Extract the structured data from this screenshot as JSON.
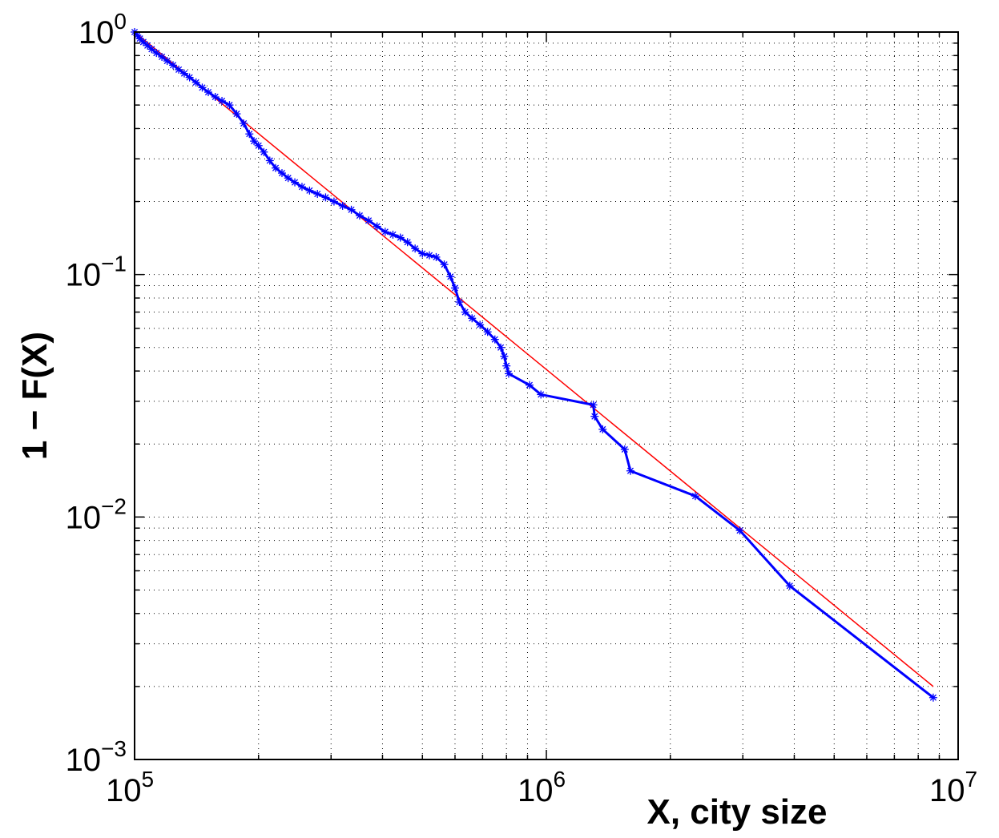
{
  "chart_data": {
    "type": "line",
    "title": "",
    "xlabel": "X, city size",
    "ylabel": "1 − F(X)",
    "xscale": "log",
    "yscale": "log",
    "xlim": [
      100000,
      10000000
    ],
    "ylim": [
      0.001,
      1
    ],
    "grid": true,
    "x_ticks": [
      {
        "value": 100000,
        "base": "10",
        "exp": "5"
      },
      {
        "value": 1000000,
        "base": "10",
        "exp": "6"
      },
      {
        "value": 10000000,
        "base": "10",
        "exp": "7"
      }
    ],
    "y_ticks": [
      {
        "value": 1,
        "base": "10",
        "exp": "0"
      },
      {
        "value": 0.1,
        "base": "10",
        "exp": "−1"
      },
      {
        "value": 0.01,
        "base": "10",
        "exp": "−2"
      },
      {
        "value": 0.001,
        "base": "10",
        "exp": "−3"
      }
    ],
    "series": [
      {
        "role": "empirical",
        "color": "#0000ff",
        "marker": "asterisk",
        "x": [
          100000,
          101500,
          103000,
          105000,
          107500,
          110000,
          113000,
          116500,
          120000,
          124000,
          128000,
          132000,
          136000,
          141000,
          146000,
          151000,
          157000,
          163000,
          170000,
          177000,
          184000,
          190000,
          195000,
          200000,
          206000,
          213000,
          220000,
          228000,
          236000,
          245000,
          255000,
          266000,
          278000,
          291000,
          305000,
          320000,
          336000,
          352000,
          370000,
          388000,
          406000,
          424000,
          442000,
          460000,
          480000,
          500000,
          520000,
          540000,
          565000,
          585000,
          600000,
          615000,
          635000,
          660000,
          690000,
          720000,
          750000,
          775000,
          790000,
          800000,
          810000,
          910000,
          970000,
          1300000,
          1310000,
          1370000,
          1550000,
          1600000,
          2300000,
          2950000,
          3900000,
          8700000
        ],
        "y": [
          1.0,
          0.97,
          0.94,
          0.91,
          0.88,
          0.85,
          0.82,
          0.79,
          0.76,
          0.73,
          0.7,
          0.675,
          0.65,
          0.62,
          0.59,
          0.565,
          0.54,
          0.52,
          0.5,
          0.46,
          0.42,
          0.38,
          0.355,
          0.34,
          0.32,
          0.295,
          0.275,
          0.262,
          0.25,
          0.24,
          0.23,
          0.222,
          0.215,
          0.208,
          0.2,
          0.192,
          0.185,
          0.175,
          0.167,
          0.158,
          0.15,
          0.146,
          0.142,
          0.136,
          0.128,
          0.122,
          0.12,
          0.118,
          0.11,
          0.098,
          0.088,
          0.077,
          0.07,
          0.066,
          0.062,
          0.058,
          0.054,
          0.05,
          0.046,
          0.042,
          0.039,
          0.035,
          0.032,
          0.029,
          0.026,
          0.023,
          0.019,
          0.0155,
          0.0122,
          0.0088,
          0.0052,
          0.0018
        ]
      },
      {
        "role": "fit",
        "color": "#ff0000",
        "x": [
          100000,
          8700000
        ],
        "y": [
          1.0,
          0.002
        ]
      }
    ]
  }
}
